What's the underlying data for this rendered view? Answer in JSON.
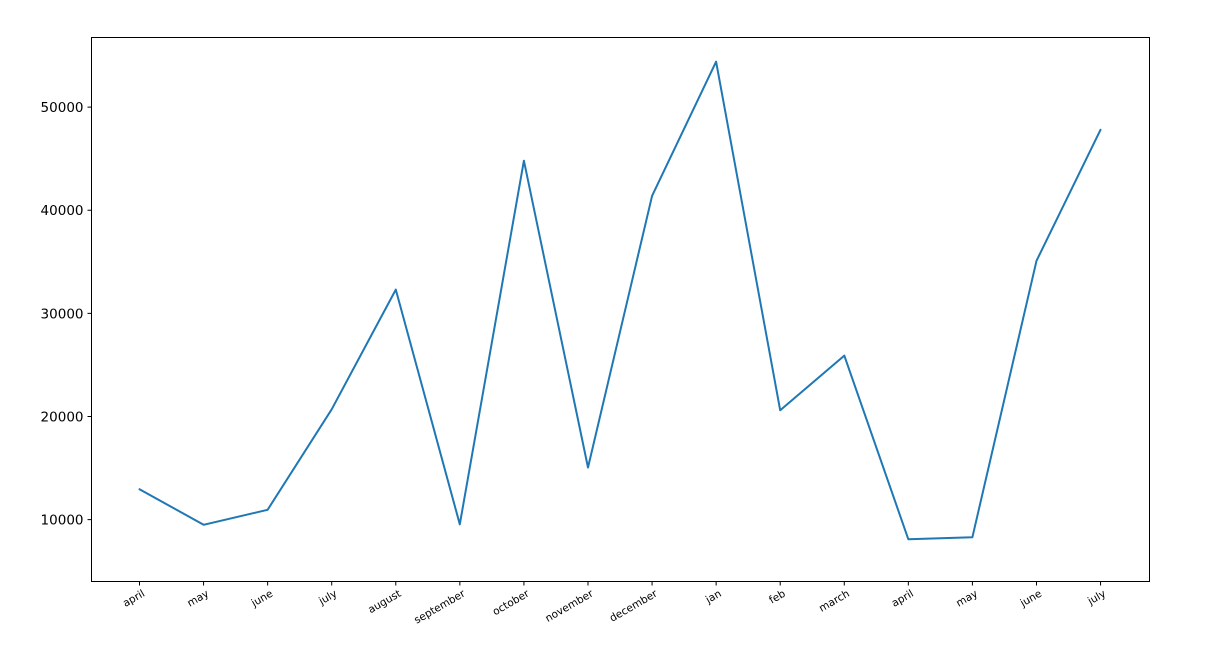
{
  "chart_data": {
    "type": "line",
    "title": "",
    "xlabel": "",
    "ylabel": "",
    "categories": [
      "april",
      "may",
      "june",
      "july",
      "august",
      "september",
      "october",
      "november",
      "december",
      "jan",
      "feb",
      "march",
      "april",
      "may",
      "june",
      "july"
    ],
    "series": [
      {
        "values": [
          12950,
          9500,
          10950,
          20700,
          32300,
          9550,
          44800,
          15050,
          41400,
          54400,
          20600,
          25900,
          8100,
          8300,
          35100,
          47800
        ],
        "color": "#1f77b4"
      }
    ],
    "yticks": [
      10000,
      20000,
      30000,
      40000,
      50000
    ],
    "ylim": [
      4000,
      56750
    ],
    "grid": false,
    "legend": "none"
  }
}
